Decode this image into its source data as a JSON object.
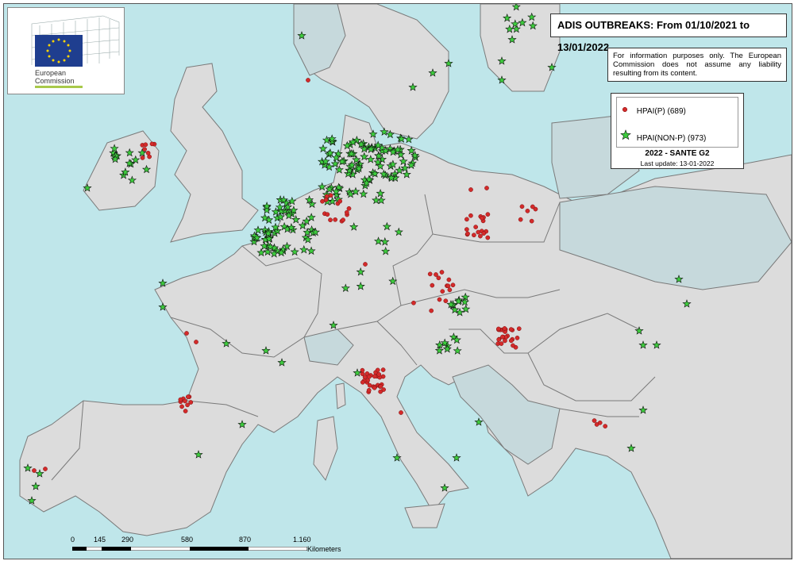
{
  "header": {
    "title": "ADIS OUTBREAKS: From 01/10/2021 to 13/01/2022"
  },
  "disclaimer": "For information purposes only. The European Commission does not assume any liability resulting from its content.",
  "logo": {
    "line1": "European",
    "line2": "Commission"
  },
  "legend": {
    "items": [
      {
        "label": "HPAI(P) (689)",
        "symbol": "red-dot",
        "color": "#d42a2a"
      },
      {
        "label": "HPAI(NON-P) (973)",
        "symbol": "green-star",
        "color": "#3dcc3d"
      }
    ],
    "source": "2022 - SANTE G2",
    "updated": "Last update: 13-01-2022"
  },
  "scale": {
    "ticks": [
      "0",
      "145",
      "290",
      "580",
      "870",
      "1.160"
    ],
    "unit": "Kilometers"
  },
  "colors": {
    "sea": "#bfe6ea",
    "land": "#dcdcdc",
    "border": "#777777"
  }
}
